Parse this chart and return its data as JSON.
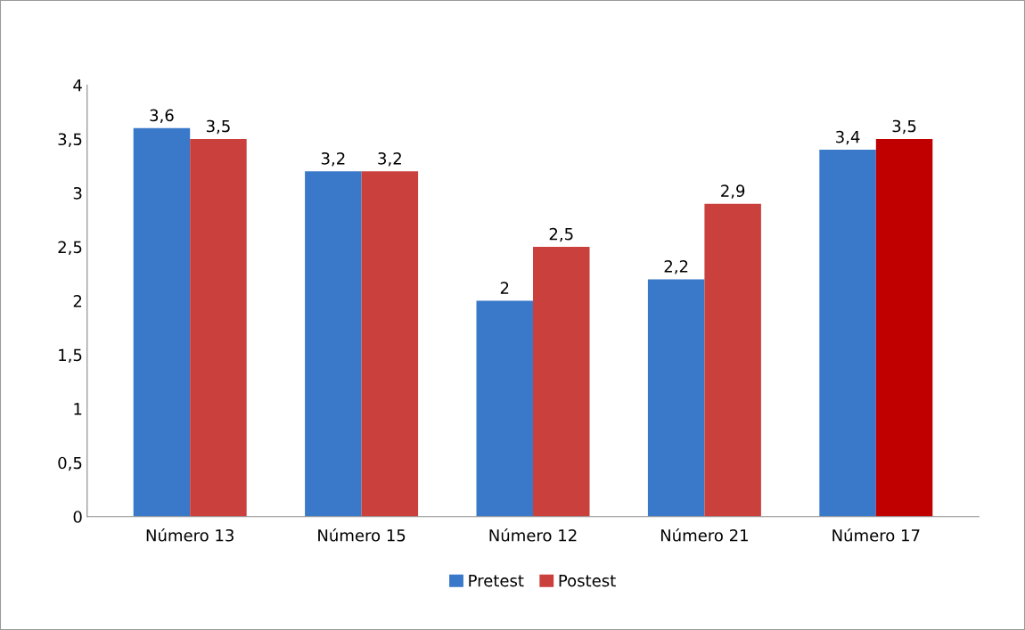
{
  "chart_data": {
    "type": "bar",
    "categories": [
      "Número 13",
      "Número 15",
      "Número 12",
      "Número 21",
      "Número 17"
    ],
    "series": [
      {
        "name": "Pretest",
        "color": "#3a78c9",
        "values": [
          3.6,
          3.2,
          2,
          2.2,
          3.4
        ],
        "value_labels": [
          "3,6",
          "3,2",
          "2",
          "2,2",
          "3,4"
        ]
      },
      {
        "name": "Postest",
        "color": "#c9403c",
        "colors": [
          "#c9403c",
          "#c9403c",
          "#c9403c",
          "#c9403c",
          "#c00000"
        ],
        "values": [
          3.5,
          3.2,
          2.5,
          2.9,
          3.5
        ],
        "value_labels": [
          "3,5",
          "3,2",
          "2,5",
          "2,9",
          "3,5"
        ]
      }
    ],
    "ylim": [
      0,
      4
    ],
    "yticks": [
      0,
      {
        "value": 0.5,
        "label": "0,5"
      },
      1,
      {
        "value": 1.5,
        "label": "1,5"
      },
      2,
      {
        "value": 2.5,
        "label": "2,5"
      },
      3,
      {
        "value": 3.5,
        "label": "3,5"
      },
      4
    ],
    "grid": false,
    "legend": "bottom"
  }
}
